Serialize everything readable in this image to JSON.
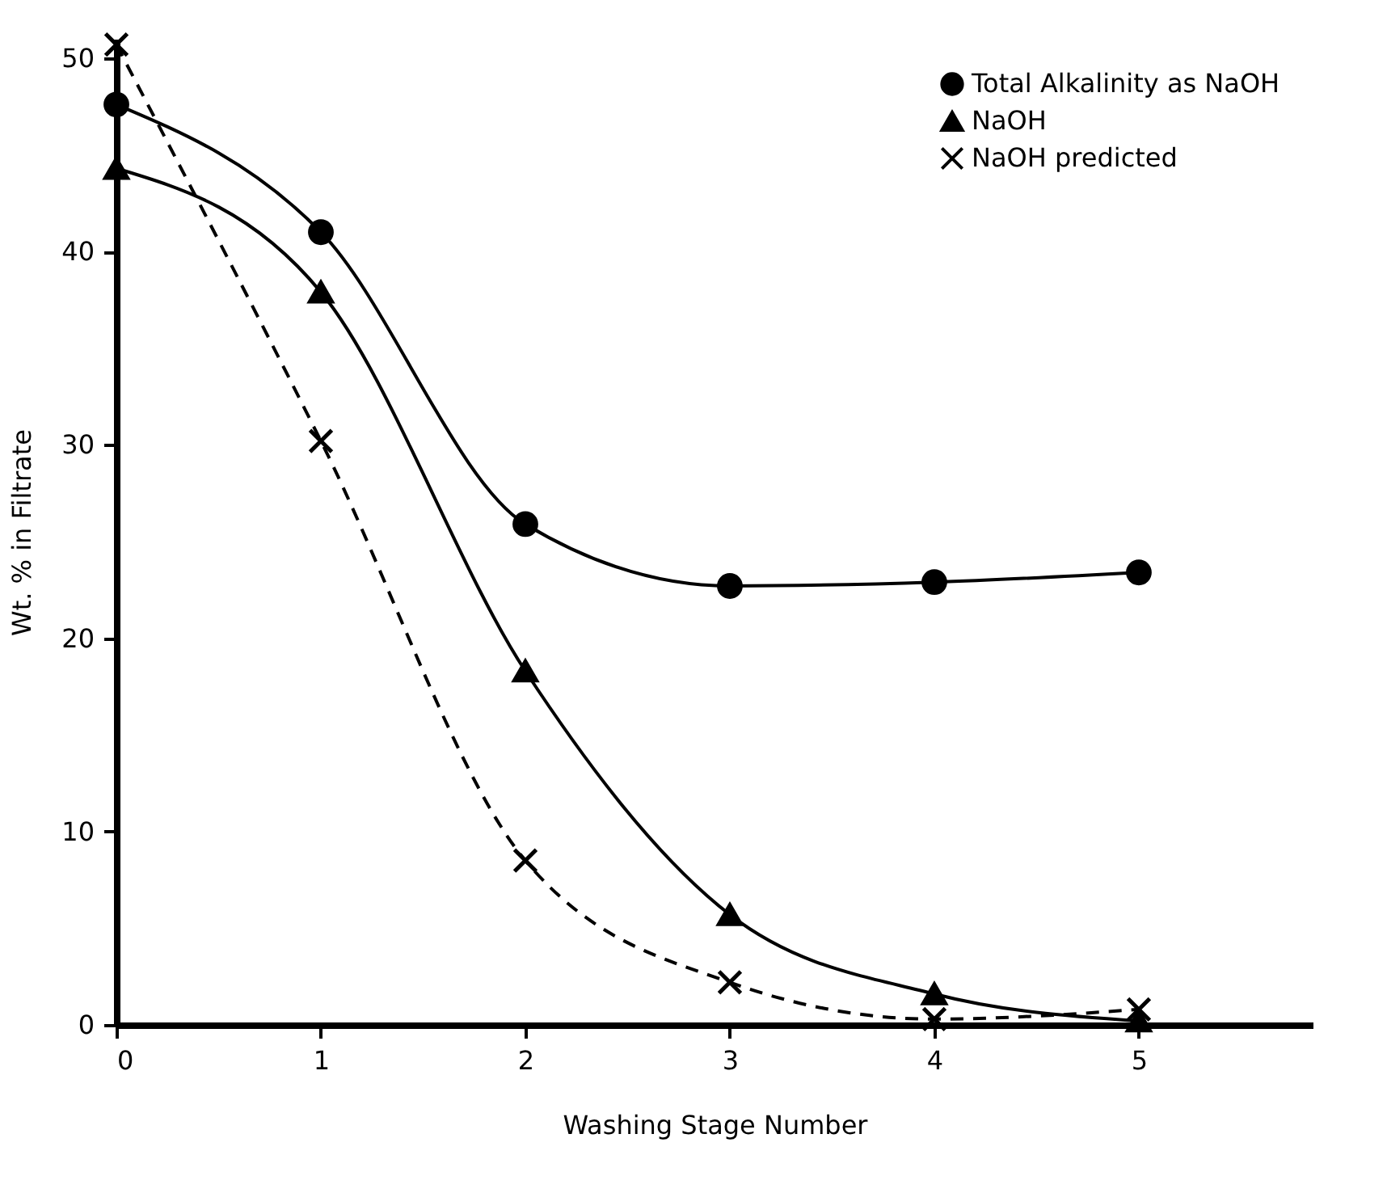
{
  "chart_data": {
    "type": "line",
    "xlabel": "Washing Stage Number",
    "ylabel": "Wt. % in Filtrate",
    "x": [
      0,
      1,
      2,
      3,
      4,
      5
    ],
    "series": [
      {
        "name": "Total Alkalinity as NaOH",
        "color": "#000000",
        "marker": "circle",
        "line_style": "solid",
        "values": [
          47.6,
          41.0,
          25.9,
          22.7,
          22.9,
          23.4
        ]
      },
      {
        "name": "NaOH",
        "color": "#000000",
        "marker": "triangle",
        "line_style": "solid",
        "values": [
          44.3,
          37.9,
          18.3,
          5.7,
          1.6,
          0.2
        ]
      },
      {
        "name": "NaOH predicted",
        "color": "#000000",
        "marker": "cross",
        "line_style": "dashed",
        "values": [
          50.7,
          30.2,
          8.5,
          2.2,
          0.3,
          0.8
        ]
      }
    ],
    "xlim": [
      0,
      5.85
    ],
    "xticks": [
      0,
      1,
      2,
      3,
      4,
      5
    ],
    "ylim": [
      0,
      51
    ],
    "yticks": [
      0,
      10,
      20,
      30,
      40,
      50
    ],
    "grid": false,
    "legend": "top right"
  }
}
